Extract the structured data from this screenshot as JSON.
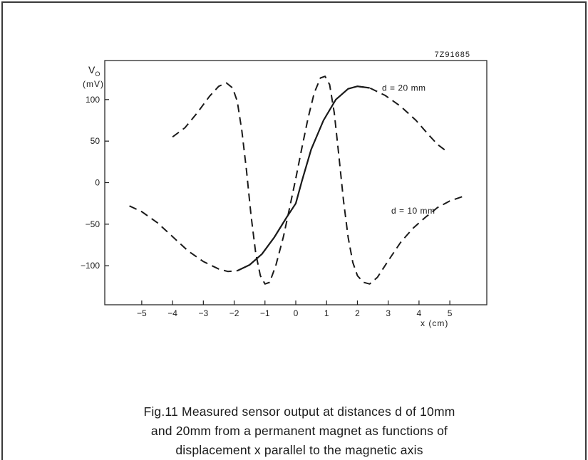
{
  "figure": {
    "code": "7Z91685",
    "caption_lines": [
      "Fig.11  Measured sensor output at distances d of 10mm",
      "and 20mm from a permanent magnet as functions of",
      "displacement x parallel to the magnetic axis"
    ]
  },
  "chart_data": {
    "type": "line",
    "xlabel": "x (cm)",
    "ylabel": "V",
    "ylabel_subscript": "O",
    "ylabel_unit": "(mV)",
    "xlim": [
      -6.2,
      6.2
    ],
    "ylim": [
      -147,
      147
    ],
    "x_ticks": [
      -5,
      -4,
      -3,
      -2,
      -1,
      0,
      1,
      2,
      3,
      4,
      5
    ],
    "x_tick_labels": [
      "−5",
      "−4",
      "−3",
      "−2",
      "−1",
      "0",
      "1",
      "2",
      "3",
      "4",
      "5"
    ],
    "y_ticks": [
      -100,
      -50,
      0,
      50,
      100
    ],
    "y_tick_labels": [
      "−100",
      "−50",
      "0",
      "50",
      "100"
    ],
    "grid": false,
    "series": [
      {
        "name": "d = 10 mm",
        "line_style": "dashed",
        "points": [
          [
            -4.0,
            55
          ],
          [
            -3.6,
            66
          ],
          [
            -3.2,
            84
          ],
          [
            -2.8,
            104
          ],
          [
            -2.5,
            116
          ],
          [
            -2.25,
            120
          ],
          [
            -2.05,
            114
          ],
          [
            -1.9,
            98
          ],
          [
            -1.75,
            62
          ],
          [
            -1.6,
            15
          ],
          [
            -1.45,
            -40
          ],
          [
            -1.3,
            -85
          ],
          [
            -1.15,
            -112
          ],
          [
            -1.0,
            -122
          ],
          [
            -0.85,
            -120
          ],
          [
            -0.65,
            -100
          ],
          [
            -0.4,
            -65
          ],
          [
            -0.2,
            -30
          ],
          [
            0,
            5
          ],
          [
            0.2,
            42
          ],
          [
            0.4,
            78
          ],
          [
            0.6,
            108
          ],
          [
            0.8,
            126
          ],
          [
            0.95,
            128
          ],
          [
            1.1,
            118
          ],
          [
            1.25,
            84
          ],
          [
            1.4,
            32
          ],
          [
            1.55,
            -22
          ],
          [
            1.7,
            -66
          ],
          [
            1.85,
            -96
          ],
          [
            2.0,
            -112
          ],
          [
            2.2,
            -120
          ],
          [
            2.4,
            -122
          ],
          [
            2.65,
            -114
          ],
          [
            3.0,
            -94
          ],
          [
            3.4,
            -72
          ],
          [
            3.8,
            -55
          ],
          [
            4.2,
            -42
          ],
          [
            4.6,
            -30
          ],
          [
            5.0,
            -22
          ],
          [
            5.4,
            -17
          ]
        ]
      },
      {
        "name": "d = 20 mm",
        "line_style": "dashed-solid",
        "points": [
          [
            -5.4,
            -28
          ],
          [
            -5.0,
            -35
          ],
          [
            -4.5,
            -48
          ],
          [
            -4.0,
            -65
          ],
          [
            -3.5,
            -82
          ],
          [
            -3.0,
            -95
          ],
          [
            -2.5,
            -104
          ],
          [
            -2.2,
            -107
          ],
          [
            -1.9,
            -106
          ],
          [
            -1.5,
            -99
          ],
          [
            -1.1,
            -86
          ],
          [
            -0.7,
            -66
          ],
          [
            -0.3,
            -42
          ],
          [
            0,
            -25
          ],
          [
            0.2,
            2
          ],
          [
            0.5,
            40
          ],
          [
            0.9,
            75
          ],
          [
            1.3,
            100
          ],
          [
            1.7,
            113
          ],
          [
            2.0,
            116
          ],
          [
            2.4,
            114
          ],
          [
            2.9,
            105
          ],
          [
            3.4,
            92
          ],
          [
            3.9,
            75
          ],
          [
            4.3,
            58
          ],
          [
            4.6,
            46
          ],
          [
            4.85,
            39
          ]
        ]
      }
    ],
    "annotations": [
      {
        "text": "d = 20 mm",
        "x": 2.8,
        "y": 114
      },
      {
        "text": "d = 10 mm",
        "x": 3.1,
        "y": -34
      }
    ]
  }
}
